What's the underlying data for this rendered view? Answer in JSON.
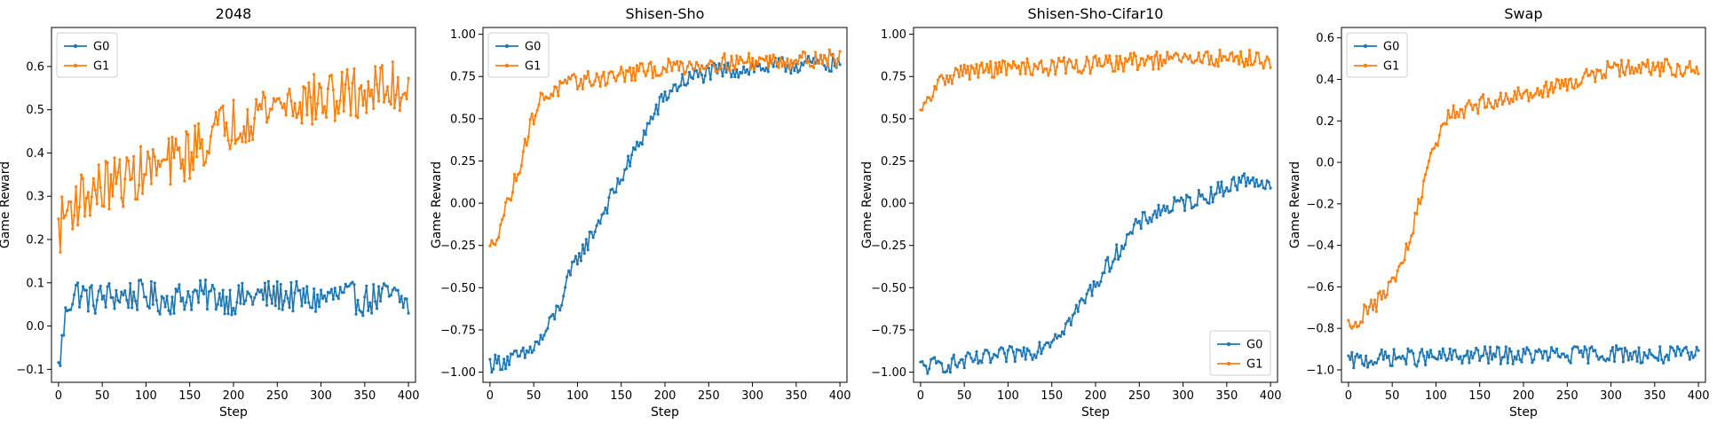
{
  "chart_data": [
    {
      "type": "line",
      "title": "2048",
      "xlabel": "Step",
      "ylabel": "Game Reward",
      "xlim": [
        -8,
        408
      ],
      "ylim": [
        -0.13,
        0.69
      ],
      "xticks": [
        0,
        50,
        100,
        150,
        200,
        250,
        300,
        350,
        400
      ],
      "yticks": [
        -0.1,
        0.0,
        0.1,
        0.2,
        0.3,
        0.4,
        0.5,
        0.6
      ],
      "legend_position": "upper-left",
      "series": [
        {
          "name": "G0",
          "color": "#1f77b4",
          "x": [
            0,
            10,
            20,
            30,
            40,
            60,
            80,
            100,
            120,
            150,
            180,
            200,
            230,
            260,
            290,
            320,
            350,
            380,
            400
          ],
          "y": [
            -0.1,
            0.05,
            0.08,
            0.07,
            0.06,
            0.07,
            0.07,
            0.07,
            0.06,
            0.07,
            0.07,
            0.06,
            0.07,
            0.07,
            0.06,
            0.07,
            0.06,
            0.07,
            0.05
          ]
        },
        {
          "name": "G1",
          "color": "#ff7f0e",
          "x": [
            0,
            10,
            20,
            30,
            40,
            60,
            80,
            100,
            120,
            150,
            180,
            200,
            230,
            260,
            290,
            320,
            350,
            380,
            400
          ],
          "y": [
            0.22,
            0.27,
            0.29,
            0.3,
            0.31,
            0.33,
            0.34,
            0.36,
            0.37,
            0.4,
            0.45,
            0.47,
            0.5,
            0.52,
            0.52,
            0.53,
            0.54,
            0.55,
            0.55
          ]
        }
      ]
    },
    {
      "type": "line",
      "title": "Shisen-Sho",
      "xlabel": "Step",
      "ylabel": "Game Reward",
      "xlim": [
        -8,
        408
      ],
      "ylim": [
        -1.06,
        1.04
      ],
      "xticks": [
        0,
        50,
        100,
        150,
        200,
        250,
        300,
        350,
        400
      ],
      "yticks": [
        -1.0,
        -0.75,
        -0.5,
        -0.25,
        0.0,
        0.25,
        0.5,
        0.75,
        1.0
      ],
      "legend_position": "upper-left",
      "series": [
        {
          "name": "G0",
          "color": "#1f77b4",
          "x": [
            0,
            20,
            40,
            60,
            80,
            90,
            100,
            110,
            120,
            130,
            140,
            150,
            160,
            170,
            180,
            190,
            200,
            210,
            220,
            240,
            260,
            300,
            350,
            400
          ],
          "y": [
            -0.95,
            -0.93,
            -0.9,
            -0.8,
            -0.6,
            -0.45,
            -0.32,
            -0.25,
            -0.15,
            -0.05,
            0.05,
            0.15,
            0.25,
            0.35,
            0.45,
            0.55,
            0.63,
            0.68,
            0.72,
            0.76,
            0.78,
            0.8,
            0.82,
            0.83
          ]
        },
        {
          "name": "G1",
          "color": "#ff7f0e",
          "x": [
            0,
            10,
            20,
            30,
            40,
            50,
            60,
            80,
            100,
            150,
            200,
            250,
            300,
            350,
            400
          ],
          "y": [
            -0.28,
            -0.15,
            0.0,
            0.15,
            0.35,
            0.52,
            0.63,
            0.68,
            0.72,
            0.76,
            0.8,
            0.83,
            0.84,
            0.85,
            0.86
          ]
        }
      ]
    },
    {
      "type": "line",
      "title": "Shisen-Sho-Cifar10",
      "xlabel": "Step",
      "ylabel": "Game Reward",
      "xlim": [
        -8,
        408
      ],
      "ylim": [
        -1.06,
        1.04
      ],
      "xticks": [
        0,
        50,
        100,
        150,
        200,
        250,
        300,
        350,
        400
      ],
      "yticks": [
        -1.0,
        -0.75,
        -0.5,
        -0.25,
        0.0,
        0.25,
        0.5,
        0.75,
        1.0
      ],
      "legend_position": "lower-right",
      "series": [
        {
          "name": "G0",
          "color": "#1f77b4",
          "x": [
            0,
            50,
            100,
            130,
            150,
            170,
            190,
            210,
            230,
            250,
            270,
            300,
            330,
            360,
            380,
            400
          ],
          "y": [
            -0.97,
            -0.94,
            -0.9,
            -0.87,
            -0.8,
            -0.7,
            -0.55,
            -0.4,
            -0.25,
            -0.12,
            -0.05,
            0.0,
            0.05,
            0.12,
            0.15,
            0.08
          ]
        },
        {
          "name": "G1",
          "color": "#ff7f0e",
          "x": [
            0,
            10,
            20,
            30,
            50,
            100,
            150,
            200,
            250,
            300,
            350,
            400
          ],
          "y": [
            0.52,
            0.62,
            0.7,
            0.75,
            0.78,
            0.8,
            0.81,
            0.82,
            0.84,
            0.85,
            0.86,
            0.85
          ]
        }
      ]
    },
    {
      "type": "line",
      "title": "Swap",
      "xlabel": "Step",
      "ylabel": "Game Reward",
      "xlim": [
        -8,
        408
      ],
      "ylim": [
        -1.06,
        0.65
      ],
      "xticks": [
        0,
        50,
        100,
        150,
        200,
        250,
        300,
        350,
        400
      ],
      "yticks": [
        -1.0,
        -0.8,
        -0.6,
        -0.4,
        -0.2,
        0.0,
        0.2,
        0.4,
        0.6
      ],
      "legend_position": "upper-left",
      "series": [
        {
          "name": "G0",
          "color": "#1f77b4",
          "x": [
            0,
            50,
            100,
            150,
            200,
            250,
            300,
            350,
            400
          ],
          "y": [
            -0.96,
            -0.94,
            -0.94,
            -0.93,
            -0.93,
            -0.93,
            -0.92,
            -0.93,
            -0.93
          ]
        },
        {
          "name": "G1",
          "color": "#ff7f0e",
          "x": [
            0,
            20,
            40,
            60,
            70,
            80,
            90,
            100,
            110,
            120,
            150,
            200,
            250,
            300,
            350,
            400
          ],
          "y": [
            -0.79,
            -0.72,
            -0.65,
            -0.5,
            -0.38,
            -0.22,
            -0.05,
            0.1,
            0.2,
            0.24,
            0.28,
            0.33,
            0.38,
            0.45,
            0.46,
            0.45
          ]
        }
      ]
    }
  ]
}
